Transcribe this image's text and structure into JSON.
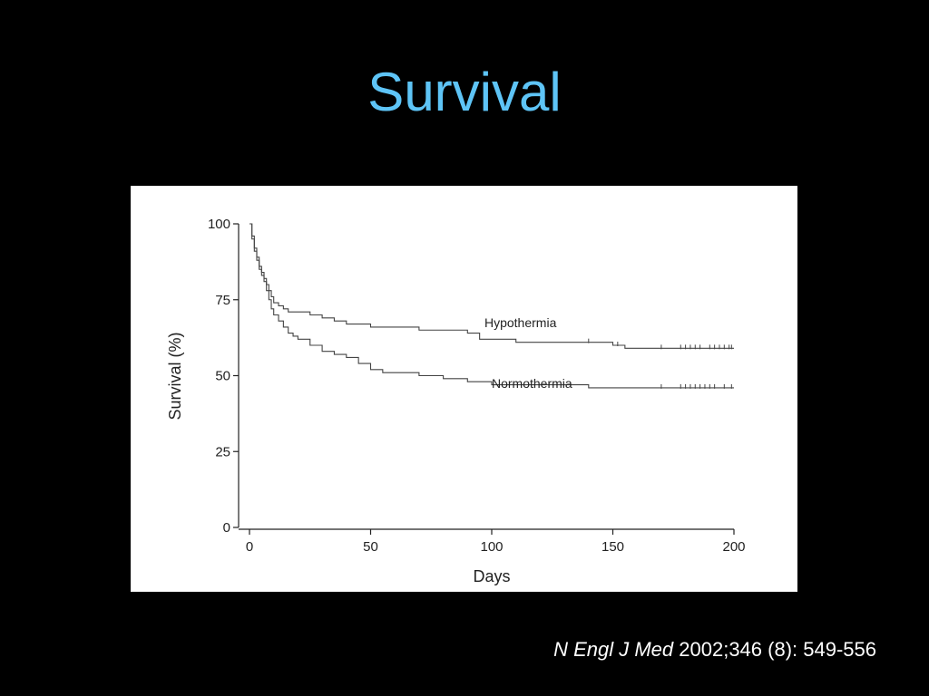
{
  "slide": {
    "title": "Survival",
    "title_color": "#5ec4f6",
    "background": "#000000"
  },
  "citation": {
    "journal": "N Engl J Med",
    "reference": "2002;346 (8): 549-556"
  },
  "chart_data": {
    "type": "line",
    "subtype": "kaplan-meier step",
    "title": "",
    "xlabel": "Days",
    "ylabel": "Survival (%)",
    "xlim": [
      0,
      200
    ],
    "ylim": [
      0,
      100
    ],
    "xticks": [
      0,
      50,
      100,
      150,
      200
    ],
    "yticks": [
      0,
      25,
      50,
      75,
      100
    ],
    "grid": false,
    "legend": "inline labels",
    "series": [
      {
        "name": "Hypothermia",
        "color": "#444444",
        "step": true,
        "x": [
          0,
          1,
          2,
          3,
          4,
          5,
          6,
          7,
          8,
          9,
          10,
          12,
          14,
          16,
          20,
          25,
          30,
          35,
          40,
          50,
          60,
          70,
          80,
          90,
          95,
          100,
          110,
          120,
          130,
          140,
          150,
          155,
          170,
          200
        ],
        "y": [
          100,
          96,
          92,
          89,
          86,
          84,
          82,
          80,
          78,
          76,
          74,
          73,
          72,
          71,
          71,
          70,
          69,
          68,
          67,
          66,
          66,
          65,
          65,
          64,
          62,
          62,
          61,
          61,
          61,
          61,
          60,
          59,
          59,
          59
        ],
        "censored_x": [
          140,
          152,
          170,
          178,
          180,
          182,
          184,
          186,
          190,
          192,
          194,
          196,
          198,
          199
        ]
      },
      {
        "name": "Normothermia",
        "color": "#444444",
        "step": true,
        "x": [
          0,
          1,
          2,
          3,
          4,
          5,
          6,
          7,
          8,
          9,
          10,
          12,
          14,
          16,
          18,
          20,
          25,
          30,
          35,
          40,
          45,
          50,
          55,
          60,
          70,
          80,
          90,
          100,
          110,
          120,
          130,
          140,
          150,
          170,
          200
        ],
        "y": [
          100,
          95,
          91,
          88,
          85,
          83,
          81,
          78,
          75,
          72,
          70,
          68,
          66,
          64,
          63,
          62,
          60,
          58,
          57,
          56,
          54,
          52,
          51,
          51,
          50,
          49,
          48,
          47,
          47,
          47,
          47,
          46,
          46,
          46,
          46
        ],
        "censored_x": [
          170,
          178,
          180,
          182,
          184,
          186,
          188,
          190,
          192,
          196,
          199
        ]
      }
    ]
  }
}
